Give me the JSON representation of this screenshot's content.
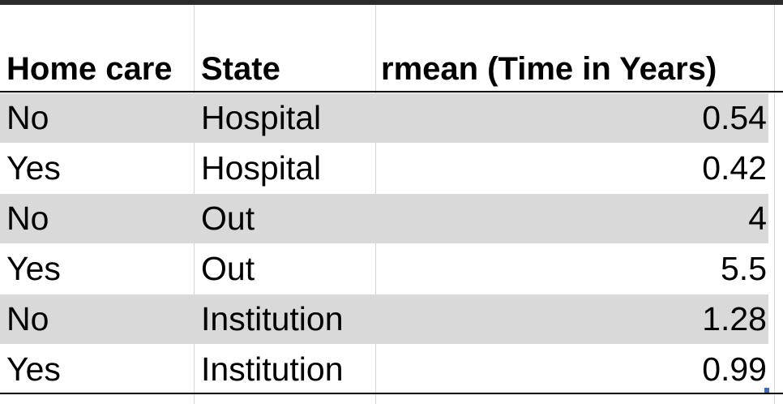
{
  "table": {
    "headers": [
      "Home care",
      "State",
      "rmean (Time in Years)"
    ],
    "rows": [
      [
        "No",
        "Hospital",
        "0.54"
      ],
      [
        "Yes",
        "Hospital",
        "0.42"
      ],
      [
        "No",
        "Out",
        "4"
      ],
      [
        "Yes",
        "Out",
        "5.5"
      ],
      [
        "No",
        "Institution",
        "1.28"
      ],
      [
        "Yes",
        "Institution",
        "0.99"
      ]
    ]
  },
  "colors": {
    "shaded_row": "#d9d9d9",
    "gridline": "#d4d4d4",
    "top_bar": "#2b2b2b",
    "selection_handle": "#3e6bb6"
  }
}
